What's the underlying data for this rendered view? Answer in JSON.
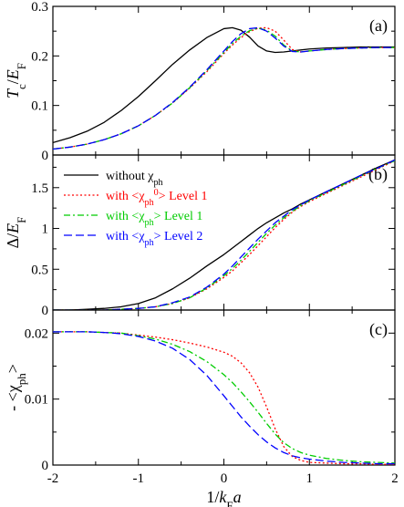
{
  "chart_data": {
    "type": "line",
    "x": [
      -2,
      -1.8,
      -1.6,
      -1.4,
      -1.2,
      -1,
      -0.8,
      -0.6,
      -0.4,
      -0.2,
      0,
      0.1,
      0.2,
      0.3,
      0.4,
      0.5,
      0.6,
      0.7,
      0.8,
      0.9,
      1,
      1.2,
      1.4,
      1.6,
      1.8,
      2
    ],
    "xlabel": "1/kFa",
    "xlim": [
      -2,
      2
    ],
    "xticks": [
      "-2",
      "-1",
      "0",
      "1",
      "2"
    ],
    "legend": {
      "placement": "top-left of panel (b)",
      "entries": [
        {
          "key": "without",
          "text": "without χph",
          "color": "#000000",
          "dash": "solid"
        },
        {
          "key": "l1_0",
          "text": "with <χph0> Level 1",
          "color": "#ff0000",
          "dash": "dotted"
        },
        {
          "key": "l1",
          "text": "with <χph> Level 1",
          "color": "#00cc00",
          "dash": "dashdot"
        },
        {
          "key": "l2",
          "text": "with <χph> Level 2",
          "color": "#0000ff",
          "dash": "dashed"
        }
      ]
    },
    "panels": [
      {
        "tag": "(a)",
        "ylabel": "Tc/EF",
        "ylim": [
          0,
          0.3
        ],
        "yticks": [
          "0",
          "0.1",
          "0.2",
          "0.3"
        ],
        "series": [
          {
            "key": "without",
            "values": [
              0.025,
              0.035,
              0.048,
              0.066,
              0.09,
              0.118,
              0.15,
              0.183,
              0.212,
              0.237,
              0.255,
              0.257,
              0.252,
              0.238,
              0.22,
              0.21,
              0.207,
              0.208,
              0.21,
              0.212,
              0.214,
              0.216,
              0.217,
              0.218,
              0.218,
              0.218
            ]
          },
          {
            "key": "l1_0",
            "values": [
              0.012,
              0.016,
              0.022,
              0.031,
              0.043,
              0.059,
              0.08,
              0.105,
              0.135,
              0.168,
              0.205,
              0.222,
              0.237,
              0.249,
              0.256,
              0.257,
              0.25,
              0.232,
              0.213,
              0.208,
              0.21,
              0.213,
              0.215,
              0.216,
              0.217,
              0.217
            ]
          },
          {
            "key": "l1",
            "values": [
              0.012,
              0.016,
              0.022,
              0.031,
              0.043,
              0.059,
              0.08,
              0.105,
              0.136,
              0.17,
              0.207,
              0.225,
              0.24,
              0.251,
              0.256,
              0.252,
              0.24,
              0.222,
              0.21,
              0.208,
              0.21,
              0.213,
              0.215,
              0.216,
              0.217,
              0.217
            ]
          },
          {
            "key": "l2",
            "values": [
              0.012,
              0.016,
              0.022,
              0.031,
              0.043,
              0.059,
              0.08,
              0.106,
              0.137,
              0.172,
              0.21,
              0.229,
              0.245,
              0.255,
              0.257,
              0.25,
              0.236,
              0.22,
              0.209,
              0.208,
              0.21,
              0.213,
              0.215,
              0.216,
              0.217,
              0.217
            ]
          }
        ]
      },
      {
        "tag": "(b)",
        "ylabel": "Δ/EF",
        "ylim": [
          0,
          1.9
        ],
        "yticks": [
          "0",
          "0.5",
          "1",
          "1.5"
        ],
        "series": [
          {
            "key": "without",
            "values": [
              0.0,
              0.0,
              0.01,
              0.02,
              0.04,
              0.08,
              0.15,
              0.26,
              0.39,
              0.54,
              0.68,
              0.76,
              0.84,
              0.92,
              1.0,
              1.07,
              1.13,
              1.19,
              1.24,
              1.3,
              1.35,
              1.45,
              1.55,
              1.65,
              1.75,
              1.84
            ]
          },
          {
            "key": "l1_0",
            "values": [
              0.0,
              0.0,
              0.0,
              0.0,
              0.01,
              0.02,
              0.04,
              0.08,
              0.15,
              0.26,
              0.4,
              0.48,
              0.58,
              0.68,
              0.79,
              0.9,
              1.01,
              1.11,
              1.2,
              1.27,
              1.33,
              1.43,
              1.53,
              1.63,
              1.73,
              1.83
            ]
          },
          {
            "key": "l1",
            "values": [
              0.0,
              0.0,
              0.0,
              0.0,
              0.01,
              0.02,
              0.04,
              0.08,
              0.15,
              0.27,
              0.42,
              0.51,
              0.61,
              0.72,
              0.83,
              0.94,
              1.04,
              1.13,
              1.21,
              1.28,
              1.34,
              1.44,
              1.54,
              1.64,
              1.74,
              1.83
            ]
          },
          {
            "key": "l2",
            "values": [
              0.0,
              0.0,
              0.0,
              0.0,
              0.01,
              0.02,
              0.04,
              0.09,
              0.16,
              0.28,
              0.44,
              0.54,
              0.65,
              0.76,
              0.87,
              0.97,
              1.07,
              1.15,
              1.23,
              1.29,
              1.35,
              1.45,
              1.55,
              1.65,
              1.74,
              1.84
            ]
          }
        ]
      },
      {
        "tag": "(c)",
        "ylabel": "- <χph>",
        "ylim": [
          0,
          0.0235
        ],
        "yticks": [
          "0",
          "0.01",
          "0.02"
        ],
        "series": [
          {
            "key": "l1_0",
            "values": [
              0.0202,
              0.0202,
              0.0202,
              0.0201,
              0.02,
              0.0197,
              0.0194,
              0.019,
              0.0185,
              0.0179,
              0.0171,
              0.0165,
              0.0155,
              0.014,
              0.0118,
              0.0088,
              0.0055,
              0.0028,
              0.0013,
              0.0007,
              0.0004,
              0.0003,
              0.0002,
              0.0002,
              0.0001,
              0.0001
            ]
          },
          {
            "key": "l1",
            "values": [
              0.0202,
              0.0202,
              0.0202,
              0.0201,
              0.02,
              0.0196,
              0.0191,
              0.0183,
              0.0172,
              0.0157,
              0.0137,
              0.0125,
              0.0111,
              0.0096,
              0.008,
              0.0063,
              0.0047,
              0.0034,
              0.0025,
              0.0019,
              0.0015,
              0.001,
              0.0007,
              0.0005,
              0.0004,
              0.0003
            ]
          },
          {
            "key": "l2",
            "values": [
              0.0202,
              0.0202,
              0.0202,
              0.0201,
              0.0199,
              0.0195,
              0.0188,
              0.0177,
              0.016,
              0.0136,
              0.0105,
              0.0089,
              0.0073,
              0.0059,
              0.0046,
              0.0035,
              0.0026,
              0.0019,
              0.0014,
              0.0011,
              0.0009,
              0.0006,
              0.0004,
              0.0003,
              0.0002,
              0.0002
            ]
          }
        ]
      }
    ]
  }
}
